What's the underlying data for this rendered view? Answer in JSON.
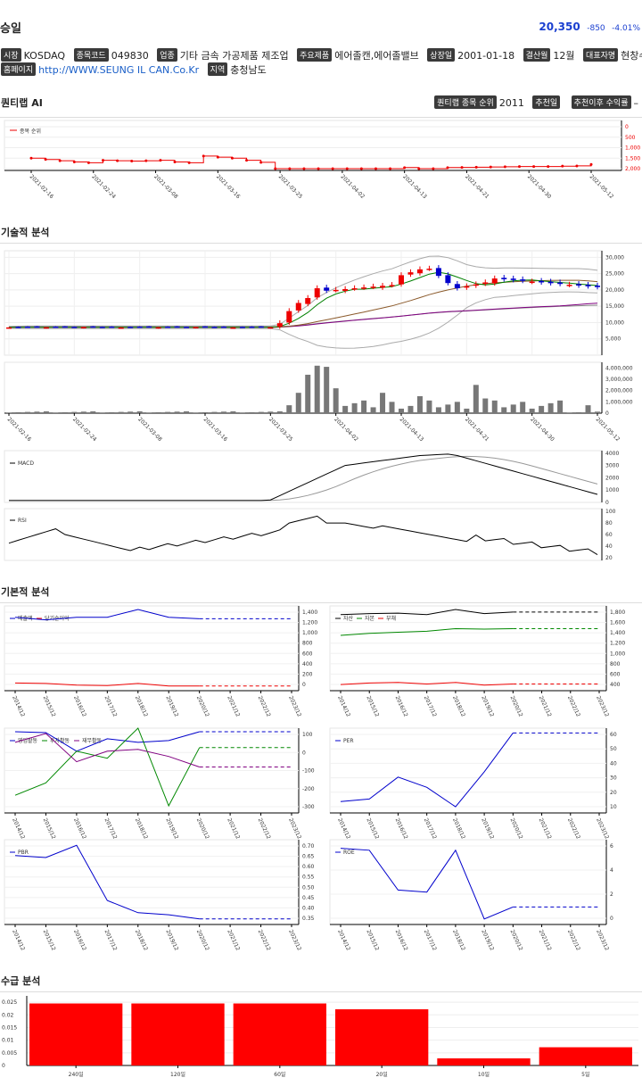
{
  "header": {
    "name": "승일",
    "price": "20,350",
    "change": "-850",
    "change_pct": "-4.01%"
  },
  "info": {
    "market_label": "시장",
    "market": "KOSDAQ",
    "code_label": "종목코드",
    "code": "049830",
    "industry_label": "업종",
    "industry": "기타 금속 가공제품 제조업",
    "product_label": "주요제품",
    "product": "에어졸캔,에어졸밸브",
    "listed_label": "상장일",
    "listed": "2001-01-18",
    "fiscal_label": "결산월",
    "fiscal": "12월",
    "ceo_label": "대표자명",
    "ceo": "현창수",
    "homepage_label": "홈페이지",
    "homepage": "http://WWW.SEUNG IL CAN.Co.Kr",
    "region_label": "지역",
    "region": "충청남도"
  },
  "quantum": {
    "title": "퀀티랩 AI",
    "rank_label": "퀀티랩 종목 순위",
    "rank": "2011",
    "rec_date_label": "추천일",
    "rec_return_label": "추천이후 수익률",
    "rec_return": "–",
    "legend": "종목 순위",
    "y_ticks": [
      "0",
      "500",
      "1,000",
      "1,500",
      "2,000"
    ],
    "x_ticks": [
      "2021-02-16",
      "2021-02-24",
      "2021-03-08",
      "2021-03-16",
      "2021-03-25",
      "2021-04-02",
      "2021-04-13",
      "2021-04-21",
      "2021-04-30",
      "2021-05-12"
    ]
  },
  "technical": {
    "title": "기술적 분석",
    "price_ticks": [
      "30,000",
      "25,000",
      "20,000",
      "15,000",
      "10,000",
      "5,000"
    ],
    "volume_ticks": [
      "4,000,000",
      "3,000,000",
      "2,000,000",
      "1,000,000",
      "0"
    ],
    "macd_label": "MACD",
    "macd_ticks": [
      "4000",
      "3000",
      "2000",
      "1000",
      "0"
    ],
    "rsi_label": "RSI",
    "rsi_ticks": [
      "100",
      "80",
      "60",
      "40",
      "20"
    ],
    "x_ticks": [
      "2021-02-16",
      "2021-02-24",
      "2021-03-08",
      "2021-03-16",
      "2021-03-25",
      "2021-04-02",
      "2021-04-13",
      "2021-04-21",
      "2021-04-30",
      "2021-05-12"
    ]
  },
  "fundamental": {
    "title": "기본적 분석",
    "years": [
      "2014/12",
      "2015/12",
      "2016/12",
      "2017/12",
      "2018/12",
      "2019/12",
      "2020/12",
      "2021/12",
      "2022/12",
      "2023/12"
    ],
    "panels": [
      {
        "legend": [
          "매출액",
          "당기순이익"
        ],
        "ticks": [
          "1,400",
          "1,200",
          "1,000",
          "800",
          "600",
          "400",
          "200",
          "0"
        ]
      },
      {
        "legend": [
          "자산",
          "자본",
          "부채"
        ],
        "ticks": [
          "1,800",
          "1,600",
          "1,400",
          "1,200",
          "1,000",
          "800",
          "600",
          "400"
        ]
      },
      {
        "legend": [
          "영업활동",
          "투자활동",
          "재무활동"
        ],
        "ticks": [
          "100",
          "0",
          "-100",
          "-200",
          "-300"
        ]
      },
      {
        "legend": [
          "PER"
        ],
        "ticks": [
          "60",
          "50",
          "40",
          "30",
          "20",
          "10"
        ]
      },
      {
        "legend": [
          "PBR"
        ],
        "ticks": [
          "0.70",
          "0.65",
          "0.60",
          "0.55",
          "0.50",
          "0.45",
          "0.40",
          "0.35"
        ]
      },
      {
        "legend": [
          "ROE"
        ],
        "ticks": [
          "6",
          "4",
          "2",
          "0"
        ]
      }
    ]
  },
  "supply": {
    "title": "수급 분석",
    "y_ticks": [
      "0.025",
      "0.02",
      "0.015",
      "0.01",
      "0.005",
      "0"
    ]
  },
  "chart_data": [
    {
      "type": "line",
      "title": "",
      "series": [
        {
          "name": "종목 순위",
          "values": [
            1500,
            1560,
            1620,
            1680,
            1720,
            1600,
            1620,
            1640,
            1620,
            1600,
            1680,
            1720,
            1400,
            1450,
            1500,
            1600,
            1700,
            2000,
            2000,
            2000,
            2000,
            2000,
            2000,
            2000,
            2000,
            2000,
            1950,
            2000,
            2000,
            1950,
            1940,
            1930,
            1920,
            1910,
            1900,
            1900,
            1900,
            1880,
            1870,
            1800
          ]
        }
      ],
      "ylim": [
        0,
        2000
      ],
      "y_inverted": true
    },
    {
      "type": "bar",
      "title": "",
      "categories": [
        "240일",
        "120일",
        "60일",
        "20일",
        "10일",
        "5일"
      ],
      "values": [
        0.0245,
        0.0245,
        0.0245,
        0.0222,
        0.0028,
        0.0072
      ],
      "ylim": [
        0,
        0.0275
      ],
      "color": "#ff0000"
    }
  ]
}
